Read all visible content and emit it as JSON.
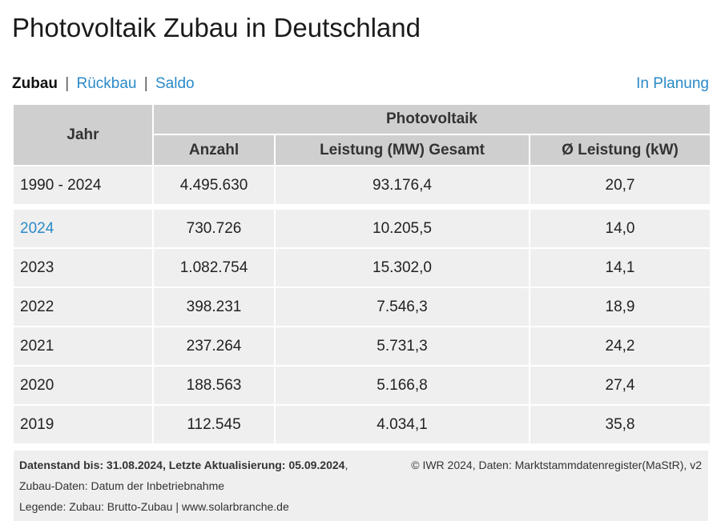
{
  "page": {
    "title": "Photovoltaik Zubau in Deutschland"
  },
  "tabs": {
    "active": "Zubau",
    "separator": "|",
    "rueckbau": "Rückbau",
    "saldo": "Saldo",
    "planning": "In Planung"
  },
  "colors": {
    "link": "#2a8ac8",
    "header_bg": "#cfcfcf",
    "cell_bg": "#efefef"
  },
  "table": {
    "year_header": "Jahr",
    "group_header": "Photovoltaik",
    "columns": [
      "Anzahl",
      "Leistung (MW) Gesamt",
      "Ø Leistung (kW)"
    ],
    "total": {
      "year": "1990 - 2024",
      "anzahl": "4.495.630",
      "leistung": "93.176,4",
      "avg": "20,7"
    },
    "rows": [
      {
        "year": "2024",
        "anzahl": "730.726",
        "leistung": "10.205,5",
        "avg": "14,0"
      },
      {
        "year": "2023",
        "anzahl": "1.082.754",
        "leistung": "15.302,0",
        "avg": "14,1"
      },
      {
        "year": "2022",
        "anzahl": "398.231",
        "leistung": "7.546,3",
        "avg": "18,9"
      },
      {
        "year": "2021",
        "anzahl": "237.264",
        "leistung": "5.731,3",
        "avg": "24,2"
      },
      {
        "year": "2020",
        "anzahl": "188.563",
        "leistung": "5.166,8",
        "avg": "27,4"
      },
      {
        "year": "2019",
        "anzahl": "112.545",
        "leistung": "4.034,1",
        "avg": "35,8"
      }
    ]
  },
  "footer": {
    "datenstand": "Datenstand bis: 31.08.2024, Letzte Aktualisierung: 05.09.2024",
    "comma": ",",
    "source": "© IWR 2024, Daten: Marktstammdatenregister(MaStR), v2",
    "zubau_daten": "Zubau-Daten: Datum der Inbetriebnahme",
    "legende": "Legende: Zubau: Brutto-Zubau | www.solarbranche.de"
  }
}
